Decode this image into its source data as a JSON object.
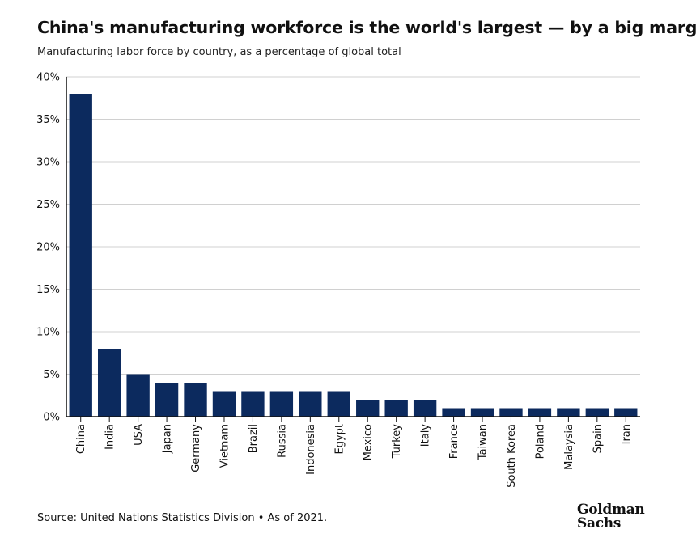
{
  "header": {
    "title": "China's manufacturing workforce is the world's largest — by a big margin",
    "subtitle": "Manufacturing labor force by country, as a percentage of global total"
  },
  "footer": {
    "source": "Source: United Nations Statistics Division • As of 2021.",
    "logo_line1": "Goldman",
    "logo_line2": "Sachs"
  },
  "colors": {
    "bar": "#0c2a5e",
    "grid": "#d0d0d0",
    "axis": "#111111"
  },
  "chart_data": {
    "type": "bar",
    "title": "China's manufacturing workforce is the world's largest — by a big margin",
    "subtitle": "Manufacturing labor force by country, as a percentage of global total",
    "xlabel": "",
    "ylabel": "",
    "categories": [
      "China",
      "India",
      "USA",
      "Japan",
      "Germany",
      "Vietnam",
      "Brazil",
      "Russia",
      "Indonesia",
      "Egypt",
      "Mexico",
      "Turkey",
      "Italy",
      "France",
      "Taiwan",
      "South Korea",
      "Poland",
      "Malaysia",
      "Spain",
      "Iran"
    ],
    "values": [
      38,
      8,
      5,
      4,
      4,
      3,
      3,
      3,
      3,
      3,
      2,
      2,
      2,
      1,
      1,
      1,
      1,
      1,
      1,
      1
    ],
    "ylim": [
      0,
      40
    ],
    "yticks": [
      0,
      5,
      10,
      15,
      20,
      25,
      30,
      35,
      40
    ],
    "ytick_labels": [
      "0%",
      "5%",
      "10%",
      "15%",
      "20%",
      "25%",
      "30%",
      "35%",
      "40%"
    ],
    "grid": true,
    "legend": "none"
  }
}
